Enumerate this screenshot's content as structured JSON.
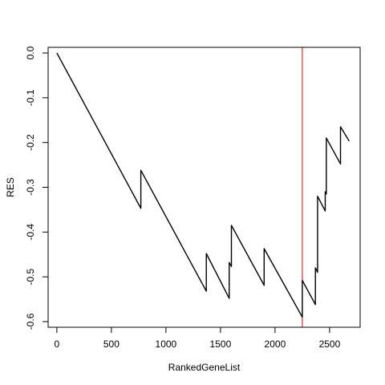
{
  "chart_data": {
    "type": "line",
    "title": "",
    "xlabel": "RankedGeneList",
    "ylabel": "RES",
    "xlim": [
      -80,
      2780
    ],
    "ylim": [
      -0.6126,
      0.0126
    ],
    "xticks": [
      0,
      500,
      1000,
      1500,
      2000,
      2500
    ],
    "yticks": [
      0.0,
      -0.1,
      -0.2,
      -0.3,
      -0.4,
      -0.5,
      -0.6
    ],
    "xtick_labels": [
      "0",
      "500",
      "1000",
      "1500",
      "2000",
      "2500"
    ],
    "ytick_labels": [
      "0.0",
      "-0.1",
      "-0.2",
      "-0.3",
      "-0.4",
      "-0.5",
      "-0.6"
    ],
    "grid": false,
    "line_color": "#000000",
    "vline": {
      "x": 2250,
      "color": "#e00000"
    },
    "series": [
      {
        "x": [
          0,
          770,
          770,
          1370,
          1370,
          1580,
          1580,
          1600,
          1600,
          1900,
          1900,
          2250,
          2250,
          2370,
          2370,
          2390,
          2390,
          2460,
          2460,
          2470,
          2470,
          2600,
          2600,
          2680
        ],
        "y": [
          0.0,
          -0.347,
          -0.262,
          -0.532,
          -0.448,
          -0.548,
          -0.468,
          -0.477,
          -0.385,
          -0.519,
          -0.437,
          -0.59,
          -0.508,
          -0.562,
          -0.48,
          -0.49,
          -0.32,
          -0.353,
          -0.31,
          -0.315,
          -0.19,
          -0.248,
          -0.165,
          -0.197
        ]
      }
    ]
  }
}
